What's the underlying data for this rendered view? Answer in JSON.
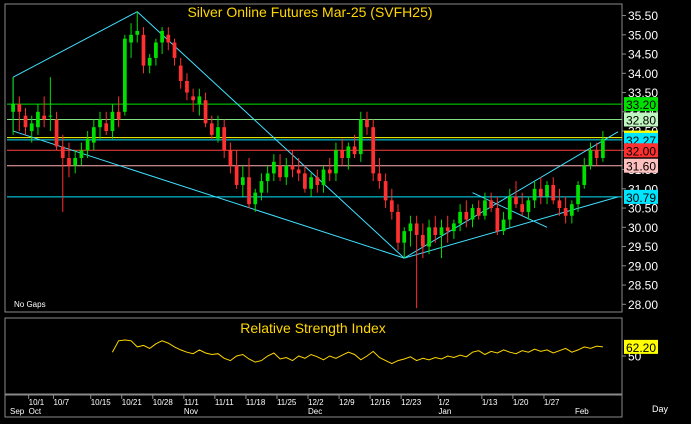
{
  "chart_data": [
    {
      "type": "candlestick",
      "title": "Silver Online Futures Mar-25 (SVFH25)",
      "ylim": [
        27.8,
        35.8
      ],
      "y_ticks": [
        "35.50",
        "35.00",
        "34.50",
        "34.00",
        "33.50",
        "33.00",
        "32.50",
        "32.00",
        "31.50",
        "31.00",
        "30.50",
        "30.00",
        "29.50",
        "29.00",
        "28.50",
        "28.00"
      ],
      "note": "No Gaps",
      "up_color": "#00e000",
      "down_color": "#ff3030",
      "price_lines": [
        {
          "value": 33.2,
          "label": "33.20",
          "color": "#00e000",
          "label_bg": "#00e000"
        },
        {
          "value": 32.8,
          "label": "32.80",
          "color": "#7fe07f",
          "label_bg": "#bff5bf"
        },
        {
          "value": 32.33,
          "label": "32.33",
          "color": "#ffff00",
          "label_bg": "#ffff00"
        },
        {
          "value": 32.27,
          "label": "32.27",
          "color": "#00e5ff",
          "label_bg": "#00e5ff"
        },
        {
          "value": 32.0,
          "label": "32.00",
          "color": "#ff4040",
          "label_bg": "#ff3030"
        },
        {
          "value": 31.6,
          "label": "31.60",
          "color": "#ffb0b0",
          "label_bg": "#ffc0c0"
        },
        {
          "value": 30.79,
          "label": "30.79",
          "color": "#00e5ff",
          "label_bg": "#00e5ff"
        }
      ],
      "trendlines_color": "#40e0ff",
      "candles": [
        {
          "o": 33.0,
          "h": 33.9,
          "l": 32.4,
          "c": 33.2
        },
        {
          "o": 33.2,
          "h": 33.4,
          "l": 32.5,
          "c": 33.0
        },
        {
          "o": 32.9,
          "h": 33.1,
          "l": 32.4,
          "c": 32.6
        },
        {
          "o": 32.5,
          "h": 32.9,
          "l": 32.2,
          "c": 32.7
        },
        {
          "o": 32.6,
          "h": 33.2,
          "l": 32.4,
          "c": 33.0
        },
        {
          "o": 32.9,
          "h": 33.4,
          "l": 32.6,
          "c": 32.8
        },
        {
          "o": 32.9,
          "h": 33.9,
          "l": 32.5,
          "c": 32.9
        },
        {
          "o": 32.8,
          "h": 33.0,
          "l": 32.0,
          "c": 32.1
        },
        {
          "o": 32.1,
          "h": 32.4,
          "l": 30.4,
          "c": 31.8
        },
        {
          "o": 31.8,
          "h": 32.2,
          "l": 31.3,
          "c": 31.6
        },
        {
          "o": 31.6,
          "h": 32.0,
          "l": 31.4,
          "c": 31.8
        },
        {
          "o": 31.8,
          "h": 32.2,
          "l": 31.6,
          "c": 32.0
        },
        {
          "o": 32.0,
          "h": 32.5,
          "l": 31.8,
          "c": 32.3
        },
        {
          "o": 32.2,
          "h": 32.8,
          "l": 32.0,
          "c": 32.6
        },
        {
          "o": 32.6,
          "h": 33.0,
          "l": 32.3,
          "c": 32.8
        },
        {
          "o": 32.7,
          "h": 33.0,
          "l": 32.4,
          "c": 32.5
        },
        {
          "o": 32.5,
          "h": 33.2,
          "l": 32.3,
          "c": 33.0
        },
        {
          "o": 33.0,
          "h": 33.4,
          "l": 32.6,
          "c": 32.8
        },
        {
          "o": 33.0,
          "h": 35.0,
          "l": 32.9,
          "c": 34.9
        },
        {
          "o": 34.8,
          "h": 35.3,
          "l": 34.4,
          "c": 35.0
        },
        {
          "o": 35.0,
          "h": 35.6,
          "l": 34.8,
          "c": 35.1
        },
        {
          "o": 35.0,
          "h": 35.2,
          "l": 34.0,
          "c": 34.2
        },
        {
          "o": 34.2,
          "h": 34.5,
          "l": 34.0,
          "c": 34.4
        },
        {
          "o": 34.4,
          "h": 34.9,
          "l": 34.2,
          "c": 34.8
        },
        {
          "o": 34.8,
          "h": 35.2,
          "l": 34.5,
          "c": 35.1
        },
        {
          "o": 35.0,
          "h": 35.2,
          "l": 34.6,
          "c": 34.8
        },
        {
          "o": 34.8,
          "h": 34.9,
          "l": 34.2,
          "c": 34.4
        },
        {
          "o": 34.2,
          "h": 34.4,
          "l": 33.6,
          "c": 33.8
        },
        {
          "o": 33.8,
          "h": 34.0,
          "l": 33.3,
          "c": 33.5
        },
        {
          "o": 33.4,
          "h": 33.6,
          "l": 33.0,
          "c": 33.3
        },
        {
          "o": 33.2,
          "h": 33.6,
          "l": 32.9,
          "c": 33.4
        },
        {
          "o": 33.3,
          "h": 33.5,
          "l": 32.6,
          "c": 32.7
        },
        {
          "o": 32.7,
          "h": 32.9,
          "l": 32.3,
          "c": 32.4
        },
        {
          "o": 32.3,
          "h": 32.9,
          "l": 32.2,
          "c": 32.6
        },
        {
          "o": 32.6,
          "h": 32.8,
          "l": 31.8,
          "c": 32.0
        },
        {
          "o": 32.0,
          "h": 32.2,
          "l": 31.4,
          "c": 31.6
        },
        {
          "o": 31.6,
          "h": 32.0,
          "l": 31.0,
          "c": 31.1
        },
        {
          "o": 31.1,
          "h": 31.6,
          "l": 30.8,
          "c": 31.3
        },
        {
          "o": 31.3,
          "h": 31.8,
          "l": 30.5,
          "c": 30.6
        },
        {
          "o": 30.6,
          "h": 31.0,
          "l": 30.4,
          "c": 30.9
        },
        {
          "o": 30.9,
          "h": 31.4,
          "l": 30.7,
          "c": 31.2
        },
        {
          "o": 31.2,
          "h": 31.6,
          "l": 30.9,
          "c": 31.4
        },
        {
          "o": 31.4,
          "h": 31.9,
          "l": 31.2,
          "c": 31.7
        },
        {
          "o": 31.6,
          "h": 31.9,
          "l": 31.2,
          "c": 31.3
        },
        {
          "o": 31.3,
          "h": 31.8,
          "l": 31.1,
          "c": 31.6
        },
        {
          "o": 31.6,
          "h": 32.0,
          "l": 31.3,
          "c": 31.5
        },
        {
          "o": 31.5,
          "h": 31.8,
          "l": 31.2,
          "c": 31.4
        },
        {
          "o": 31.4,
          "h": 31.6,
          "l": 30.9,
          "c": 31.0
        },
        {
          "o": 31.0,
          "h": 31.4,
          "l": 30.8,
          "c": 31.3
        },
        {
          "o": 31.3,
          "h": 31.5,
          "l": 30.9,
          "c": 31.1
        },
        {
          "o": 31.1,
          "h": 31.6,
          "l": 30.9,
          "c": 31.5
        },
        {
          "o": 31.5,
          "h": 31.8,
          "l": 31.2,
          "c": 31.4
        },
        {
          "o": 31.4,
          "h": 32.2,
          "l": 31.2,
          "c": 32.0
        },
        {
          "o": 32.0,
          "h": 32.3,
          "l": 31.6,
          "c": 31.8
        },
        {
          "o": 31.8,
          "h": 32.2,
          "l": 31.5,
          "c": 32.1
        },
        {
          "o": 32.1,
          "h": 32.4,
          "l": 31.8,
          "c": 31.9
        },
        {
          "o": 31.9,
          "h": 33.0,
          "l": 31.7,
          "c": 32.8
        },
        {
          "o": 32.8,
          "h": 33.0,
          "l": 32.4,
          "c": 32.6
        },
        {
          "o": 32.6,
          "h": 32.8,
          "l": 31.2,
          "c": 31.4
        },
        {
          "o": 31.4,
          "h": 31.8,
          "l": 31.0,
          "c": 31.2
        },
        {
          "o": 31.2,
          "h": 31.4,
          "l": 30.5,
          "c": 30.7
        },
        {
          "o": 30.7,
          "h": 31.0,
          "l": 30.2,
          "c": 30.4
        },
        {
          "o": 30.4,
          "h": 30.6,
          "l": 29.4,
          "c": 29.6
        },
        {
          "o": 29.6,
          "h": 30.0,
          "l": 29.2,
          "c": 29.9
        },
        {
          "o": 29.9,
          "h": 30.3,
          "l": 29.5,
          "c": 30.1
        },
        {
          "o": 30.1,
          "h": 30.3,
          "l": 27.9,
          "c": 29.8
        },
        {
          "o": 29.8,
          "h": 30.1,
          "l": 29.2,
          "c": 29.5
        },
        {
          "o": 29.5,
          "h": 30.2,
          "l": 29.3,
          "c": 30.0
        },
        {
          "o": 30.0,
          "h": 30.3,
          "l": 29.6,
          "c": 29.8
        },
        {
          "o": 29.8,
          "h": 30.2,
          "l": 29.2,
          "c": 30.0
        },
        {
          "o": 30.0,
          "h": 30.3,
          "l": 29.6,
          "c": 29.9
        },
        {
          "o": 29.9,
          "h": 30.2,
          "l": 29.7,
          "c": 30.1
        },
        {
          "o": 30.1,
          "h": 30.6,
          "l": 29.9,
          "c": 30.4
        },
        {
          "o": 30.4,
          "h": 30.7,
          "l": 30.0,
          "c": 30.2
        },
        {
          "o": 30.2,
          "h": 30.6,
          "l": 30.0,
          "c": 30.5
        },
        {
          "o": 30.5,
          "h": 30.7,
          "l": 30.2,
          "c": 30.3
        },
        {
          "o": 30.3,
          "h": 30.9,
          "l": 30.2,
          "c": 30.7
        },
        {
          "o": 30.7,
          "h": 30.9,
          "l": 30.4,
          "c": 30.5
        },
        {
          "o": 30.5,
          "h": 30.8,
          "l": 29.8,
          "c": 29.9
        },
        {
          "o": 29.9,
          "h": 30.4,
          "l": 29.8,
          "c": 30.2
        },
        {
          "o": 30.2,
          "h": 31.0,
          "l": 30.0,
          "c": 30.8
        },
        {
          "o": 30.8,
          "h": 31.2,
          "l": 30.5,
          "c": 30.6
        },
        {
          "o": 30.6,
          "h": 30.9,
          "l": 30.3,
          "c": 30.4
        },
        {
          "o": 30.4,
          "h": 30.8,
          "l": 30.2,
          "c": 30.7
        },
        {
          "o": 30.7,
          "h": 31.2,
          "l": 30.5,
          "c": 31.0
        },
        {
          "o": 31.0,
          "h": 31.3,
          "l": 30.6,
          "c": 30.8
        },
        {
          "o": 30.8,
          "h": 31.2,
          "l": 30.6,
          "c": 31.1
        },
        {
          "o": 31.1,
          "h": 31.3,
          "l": 30.6,
          "c": 30.7
        },
        {
          "o": 30.7,
          "h": 31.0,
          "l": 30.3,
          "c": 30.5
        },
        {
          "o": 30.5,
          "h": 30.8,
          "l": 30.1,
          "c": 30.3
        },
        {
          "o": 30.3,
          "h": 30.7,
          "l": 30.1,
          "c": 30.6
        },
        {
          "o": 30.6,
          "h": 31.2,
          "l": 30.4,
          "c": 31.1
        },
        {
          "o": 31.1,
          "h": 31.8,
          "l": 31.0,
          "c": 31.6
        },
        {
          "o": 31.6,
          "h": 32.2,
          "l": 31.5,
          "c": 32.0
        },
        {
          "o": 32.0,
          "h": 32.2,
          "l": 31.6,
          "c": 31.8
        },
        {
          "o": 31.8,
          "h": 32.5,
          "l": 31.7,
          "c": 32.3
        }
      ],
      "x_ticks": [
        {
          "i": 0,
          "label": "Sep",
          "row": 2
        },
        {
          "i": 3,
          "label": "10/1",
          "row": 1
        },
        {
          "i": 3,
          "label": "Oct",
          "row": 2
        },
        {
          "i": 7,
          "label": "10/7",
          "row": 1
        },
        {
          "i": 13,
          "label": "10/15",
          "row": 1
        },
        {
          "i": 18,
          "label": "10/21",
          "row": 1
        },
        {
          "i": 23,
          "label": "10/28",
          "row": 1
        },
        {
          "i": 28,
          "label": "11/1",
          "row": 1
        },
        {
          "i": 28,
          "label": "Nov",
          "row": 2
        },
        {
          "i": 33,
          "label": "11/11",
          "row": 1
        },
        {
          "i": 38,
          "label": "11/18",
          "row": 1
        },
        {
          "i": 43,
          "label": "11/25",
          "row": 1
        },
        {
          "i": 48,
          "label": "12/2",
          "row": 1
        },
        {
          "i": 48,
          "label": "Dec",
          "row": 2
        },
        {
          "i": 53,
          "label": "12/9",
          "row": 1
        },
        {
          "i": 58,
          "label": "12/16",
          "row": 1
        },
        {
          "i": 63,
          "label": "12/23",
          "row": 1
        },
        {
          "i": 69,
          "label": "1/2",
          "row": 1
        },
        {
          "i": 69,
          "label": "Jan",
          "row": 2
        },
        {
          "i": 76,
          "label": "1/13",
          "row": 1
        },
        {
          "i": 81,
          "label": "1/20",
          "row": 1
        },
        {
          "i": 86,
          "label": "1/27",
          "row": 1
        },
        {
          "i": 91,
          "label": "Feb",
          "row": 2
        }
      ],
      "x_period": "Day"
    },
    {
      "type": "line",
      "title": "Relative Strength Index",
      "ylim": [
        0,
        100
      ],
      "y_ticks": [
        "50"
      ],
      "last_value": "62.20",
      "color": "#ffd700",
      "start_index": 16,
      "values": [
        55,
        70,
        71,
        70,
        62,
        64,
        60,
        66,
        70,
        67,
        62,
        58,
        55,
        53,
        58,
        54,
        52,
        53,
        47,
        44,
        50,
        52,
        46,
        42,
        44,
        50,
        54,
        46,
        48,
        44,
        50,
        47,
        52,
        49,
        45,
        50,
        47,
        51,
        55,
        52,
        45,
        50,
        56,
        48,
        44,
        40,
        44,
        46,
        49,
        44,
        47,
        45,
        48,
        46,
        50,
        48,
        51,
        49,
        55,
        57,
        52,
        56,
        54,
        58,
        55,
        53,
        57,
        55,
        59,
        56,
        58,
        54,
        57,
        60,
        55,
        58,
        62,
        60,
        63,
        62
      ]
    }
  ]
}
